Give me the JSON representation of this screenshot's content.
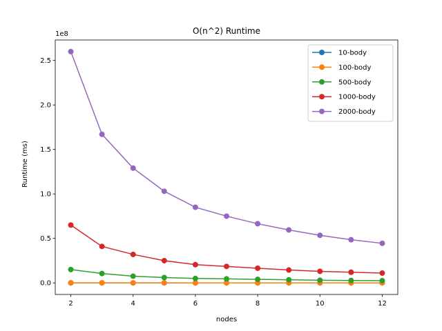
{
  "chart_data": {
    "type": "line",
    "title": "O(n^2) Runtime",
    "xlabel": "nodes",
    "ylabel": "Runtime (ms)",
    "y_offset_label": "1e8",
    "y_multiplier": 100000000,
    "xlim": [
      1.5,
      12.5
    ],
    "ylim": [
      -0.13,
      2.73
    ],
    "xticks": [
      2,
      4,
      6,
      8,
      10,
      12
    ],
    "yticks": [
      0.0,
      0.5,
      1.0,
      1.5,
      2.0,
      2.5
    ],
    "ytick_labels": [
      "0.0",
      "0.5",
      "1.0",
      "1.5",
      "2.0",
      "2.5"
    ],
    "x": [
      2,
      3,
      4,
      5,
      6,
      7,
      8,
      9,
      10,
      11,
      12
    ],
    "grid": false,
    "legend_position": "top-right",
    "series": [
      {
        "name": "10-body",
        "color": "#1f77b4",
        "values": [
          0.0003,
          0.0002,
          0.0002,
          0.0001,
          0.0001,
          0.0001,
          0.0001,
          0.0001,
          0.0001,
          0.0001,
          0.0001
        ]
      },
      {
        "name": "100-body",
        "color": "#ff7f0e",
        "values": [
          0.001,
          0.0007,
          0.0005,
          0.0004,
          0.0003,
          0.0003,
          0.0003,
          0.0002,
          0.0002,
          0.0002,
          0.0002
        ]
      },
      {
        "name": "500-body",
        "color": "#2ca02c",
        "values": [
          0.15,
          0.105,
          0.075,
          0.06,
          0.05,
          0.045,
          0.04,
          0.035,
          0.03,
          0.027,
          0.025
        ]
      },
      {
        "name": "1000-body",
        "color": "#d62728",
        "values": [
          0.65,
          0.41,
          0.32,
          0.25,
          0.205,
          0.185,
          0.165,
          0.145,
          0.13,
          0.12,
          0.11
        ]
      },
      {
        "name": "2000-body",
        "color": "#9467bd",
        "values": [
          2.6,
          1.67,
          1.29,
          1.03,
          0.85,
          0.75,
          0.665,
          0.595,
          0.535,
          0.485,
          0.445
        ]
      }
    ]
  }
}
